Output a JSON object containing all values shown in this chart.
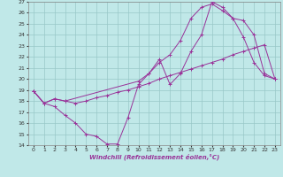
{
  "xlabel": "Windchill (Refroidissement éolien,°C)",
  "bg_color": "#c0e8e8",
  "grid_color": "#98c8c8",
  "line_color": "#993399",
  "xlim": [
    -0.5,
    23.5
  ],
  "ylim": [
    14,
    27
  ],
  "xticks": [
    0,
    1,
    2,
    3,
    4,
    5,
    6,
    7,
    8,
    9,
    10,
    11,
    12,
    13,
    14,
    15,
    16,
    17,
    18,
    19,
    20,
    21,
    22,
    23
  ],
  "yticks": [
    14,
    15,
    16,
    17,
    18,
    19,
    20,
    21,
    22,
    23,
    24,
    25,
    26,
    27
  ],
  "line1_x": [
    0,
    1,
    2,
    3,
    4,
    5,
    6,
    7,
    8,
    9,
    10,
    11,
    12,
    13,
    14,
    15,
    16,
    17,
    18,
    19,
    20,
    21,
    22,
    23
  ],
  "line1_y": [
    18.9,
    17.8,
    17.5,
    16.7,
    16.0,
    15.0,
    14.8,
    14.1,
    14.1,
    16.5,
    19.5,
    20.5,
    21.8,
    19.5,
    20.5,
    22.5,
    24.0,
    27.0,
    26.5,
    25.5,
    23.8,
    21.5,
    20.3,
    20.0
  ],
  "line2_x": [
    0,
    1,
    2,
    3,
    4,
    5,
    6,
    7,
    8,
    9,
    10,
    11,
    12,
    13,
    14,
    15,
    16,
    17,
    18,
    19,
    20,
    21,
    22,
    23
  ],
  "line2_y": [
    18.9,
    17.8,
    18.2,
    18.0,
    17.8,
    18.0,
    18.3,
    18.5,
    18.8,
    19.0,
    19.3,
    19.6,
    20.0,
    20.3,
    20.6,
    20.9,
    21.2,
    21.5,
    21.8,
    22.2,
    22.5,
    22.8,
    23.1,
    20.0
  ],
  "line3_x": [
    0,
    1,
    2,
    3,
    10,
    11,
    12,
    13,
    14,
    15,
    16,
    17,
    18,
    19,
    20,
    21,
    22,
    23
  ],
  "line3_y": [
    18.9,
    17.8,
    18.2,
    18.0,
    19.8,
    20.5,
    21.5,
    22.2,
    23.5,
    25.5,
    26.5,
    26.8,
    26.2,
    25.5,
    25.3,
    24.0,
    20.5,
    20.0
  ]
}
